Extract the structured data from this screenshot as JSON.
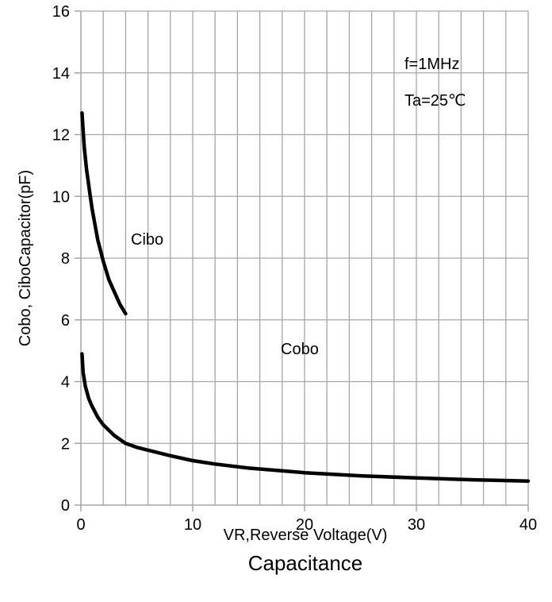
{
  "chart_data": {
    "type": "line",
    "title": "",
    "caption": "Capacitance",
    "xlabel": "VR,Reverse Voltage(V)",
    "ylabel": "Cobo, CiboCapacitor(pF)",
    "xlim": [
      0,
      40
    ],
    "ylim": [
      0,
      16
    ],
    "x_ticks": [
      0,
      10,
      20,
      30,
      40
    ],
    "y_ticks": [
      0,
      2,
      4,
      6,
      8,
      10,
      12,
      14,
      16
    ],
    "x_minor_step": 2,
    "y_grid_step": 2,
    "grid": true,
    "legend": "none",
    "line_color": "#000000",
    "grid_color": "#a6a6a6",
    "annotations": [
      "f=1MHz",
      "Ta=25℃"
    ],
    "series": [
      {
        "name": "Cibo",
        "x": [
          0.1,
          0.3,
          0.5,
          0.8,
          1.0,
          1.5,
          2.0,
          2.5,
          3.0,
          3.5,
          4.0
        ],
        "y": [
          12.7,
          11.6,
          10.9,
          10.1,
          9.6,
          8.6,
          7.9,
          7.3,
          6.9,
          6.5,
          6.2
        ]
      },
      {
        "name": "Cobo",
        "x": [
          0.1,
          0.2,
          0.4,
          0.7,
          1.0,
          1.5,
          2.0,
          3.0,
          4.0,
          5.0,
          6.0,
          8.0,
          10,
          12,
          15,
          20,
          25,
          30,
          35,
          40
        ],
        "y": [
          4.9,
          4.3,
          3.85,
          3.45,
          3.2,
          2.85,
          2.6,
          2.25,
          2.0,
          1.87,
          1.78,
          1.6,
          1.44,
          1.33,
          1.2,
          1.05,
          0.95,
          0.88,
          0.82,
          0.78
        ]
      }
    ]
  }
}
